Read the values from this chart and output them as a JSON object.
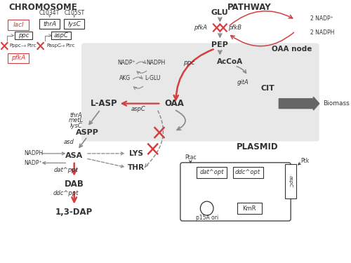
{
  "RED": "#d04040",
  "GRAY": "#888888",
  "DARK": "#333333",
  "LGRAY": "#e8e8e8",
  "figsize": [
    5.0,
    3.75
  ],
  "dpi": 100,
  "xlim": [
    0,
    10
  ],
  "ylim": [
    0,
    7.5
  ]
}
